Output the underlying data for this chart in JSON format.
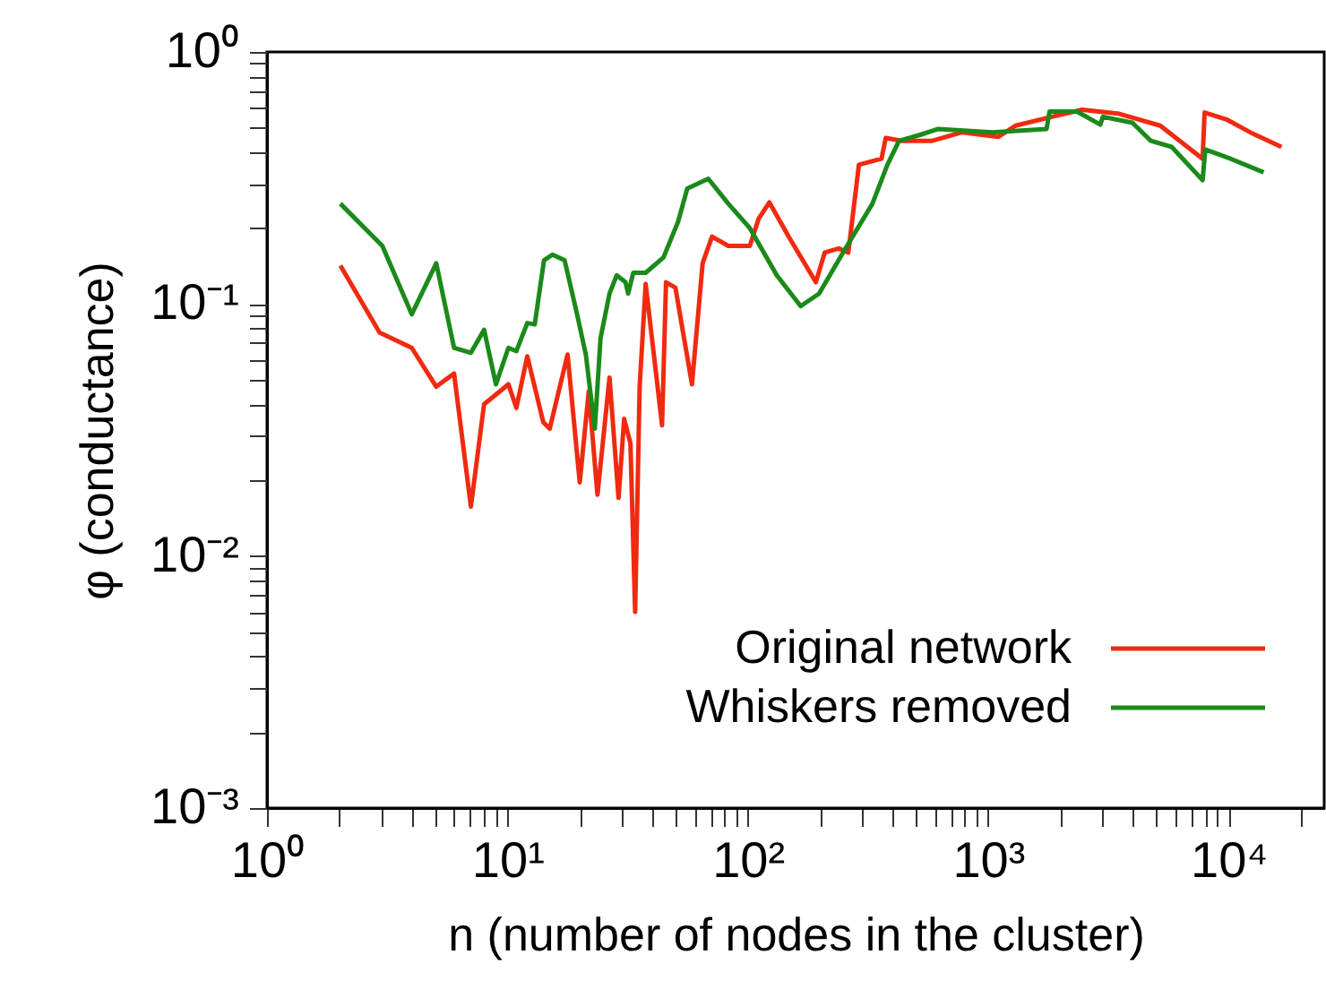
{
  "chart_data": {
    "type": "line",
    "xlabel": "n (number of nodes in the cluster)",
    "ylabel": "φ (conductance)",
    "log": "xy",
    "grid": false,
    "legend": "bottom right",
    "line_style": "solid",
    "marker": "none",
    "xlim": [
      1,
      25000
    ],
    "ylim": [
      0.001,
      1
    ],
    "xticks": [
      {
        "value": 1,
        "label": "10⁰"
      },
      {
        "value": 2,
        "label": null
      },
      {
        "value": 3,
        "label": null
      },
      {
        "value": 4,
        "label": null
      },
      {
        "value": 5,
        "label": null
      },
      {
        "value": 6,
        "label": null
      },
      {
        "value": 7,
        "label": null
      },
      {
        "value": 8,
        "label": null
      },
      {
        "value": 9,
        "label": null
      },
      {
        "value": 10,
        "label": "10¹"
      },
      {
        "value": 20,
        "label": null
      },
      {
        "value": 30,
        "label": null
      },
      {
        "value": 40,
        "label": null
      },
      {
        "value": 50,
        "label": null
      },
      {
        "value": 60,
        "label": null
      },
      {
        "value": 70,
        "label": null
      },
      {
        "value": 80,
        "label": null
      },
      {
        "value": 90,
        "label": null
      },
      {
        "value": 100,
        "label": "10²"
      },
      {
        "value": 200,
        "label": null
      },
      {
        "value": 300,
        "label": null
      },
      {
        "value": 400,
        "label": null
      },
      {
        "value": 500,
        "label": null
      },
      {
        "value": 600,
        "label": null
      },
      {
        "value": 700,
        "label": null
      },
      {
        "value": 800,
        "label": null
      },
      {
        "value": 900,
        "label": null
      },
      {
        "value": 1000,
        "label": "10³"
      },
      {
        "value": 2000,
        "label": null
      },
      {
        "value": 3000,
        "label": null
      },
      {
        "value": 4000,
        "label": null
      },
      {
        "value": 5000,
        "label": null
      },
      {
        "value": 6000,
        "label": null
      },
      {
        "value": 7000,
        "label": null
      },
      {
        "value": 8000,
        "label": null
      },
      {
        "value": 9000,
        "label": null
      },
      {
        "value": 10000,
        "label": "10⁴"
      },
      {
        "value": 20000,
        "label": null
      }
    ],
    "yticks": [
      {
        "value": 0.001,
        "label": "10⁻³"
      },
      {
        "value": 0.002,
        "label": null
      },
      {
        "value": 0.003,
        "label": null
      },
      {
        "value": 0.004,
        "label": null
      },
      {
        "value": 0.005,
        "label": null
      },
      {
        "value": 0.006,
        "label": null
      },
      {
        "value": 0.007,
        "label": null
      },
      {
        "value": 0.008,
        "label": null
      },
      {
        "value": 0.009,
        "label": null
      },
      {
        "value": 0.01,
        "label": "10⁻²"
      },
      {
        "value": 0.02,
        "label": null
      },
      {
        "value": 0.03,
        "label": null
      },
      {
        "value": 0.04,
        "label": null
      },
      {
        "value": 0.05,
        "label": null
      },
      {
        "value": 0.06,
        "label": null
      },
      {
        "value": 0.07,
        "label": null
      },
      {
        "value": 0.08,
        "label": null
      },
      {
        "value": 0.09,
        "label": null
      },
      {
        "value": 0.1,
        "label": "10⁻¹"
      },
      {
        "value": 0.2,
        "label": null
      },
      {
        "value": 0.3,
        "label": null
      },
      {
        "value": 0.4,
        "label": null
      },
      {
        "value": 0.5,
        "label": null
      },
      {
        "value": 0.6,
        "label": null
      },
      {
        "value": 0.7,
        "label": null
      },
      {
        "value": 0.8,
        "label": null
      },
      {
        "value": 0.9,
        "label": null
      },
      {
        "value": 1,
        "label": "10⁰"
      }
    ],
    "series": [
      {
        "name": "Original network",
        "color": "#f02a10",
        "x": [
          2.02,
          2.94,
          4.0,
          5.06,
          6.0,
          7.05,
          8.0,
          10.1,
          10.9,
          12.1,
          14.1,
          15.0,
          17.8,
          20.0,
          21.8,
          23.7,
          26.6,
          29.0,
          30.6,
          32.5,
          34.0,
          35.5,
          37.6,
          44,
          45.7,
          50,
          58.6,
          64.9,
          71,
          83,
          102,
          111,
          123,
          148,
          192,
          209,
          239,
          262,
          290,
          360,
          375,
          438,
          586,
          780,
          1100,
          1300,
          1840,
          2460,
          3460,
          5200,
          7800,
          7950,
          9800,
          12300,
          16600
        ],
        "values": [
          0.142,
          0.077,
          0.067,
          0.047,
          0.053,
          0.0157,
          0.04,
          0.048,
          0.0387,
          0.062,
          0.034,
          0.032,
          0.063,
          0.0196,
          0.045,
          0.0175,
          0.051,
          0.017,
          0.035,
          0.028,
          0.006,
          0.047,
          0.12,
          0.033,
          0.122,
          0.116,
          0.048,
          0.145,
          0.185,
          0.17,
          0.17,
          0.218,
          0.253,
          0.185,
          0.122,
          0.16,
          0.166,
          0.16,
          0.357,
          0.377,
          0.456,
          0.444,
          0.444,
          0.48,
          0.46,
          0.51,
          0.553,
          0.59,
          0.57,
          0.51,
          0.377,
          0.575,
          0.54,
          0.48,
          0.42
        ]
      },
      {
        "name": "Whiskers removed",
        "color": "#1a8a1a",
        "x": [
          2.02,
          3.02,
          4.0,
          5.06,
          6.0,
          7.05,
          8.0,
          8.96,
          10.1,
          10.9,
          12.1,
          13.0,
          14.2,
          15.4,
          17.3,
          19.4,
          21.2,
          23.1,
          24.4,
          26.6,
          28.5,
          31,
          31.8,
          33.4,
          37.6,
          44.6,
          51.3,
          56,
          68.5,
          83,
          102,
          132,
          166,
          198,
          249,
          330,
          381,
          426,
          525,
          620,
          1040,
          1750,
          1800,
          2340,
          2930,
          3000,
          3980,
          4750,
          5800,
          7800,
          8000,
          10200,
          14000
        ],
        "values": [
          0.25,
          0.17,
          0.091,
          0.145,
          0.067,
          0.064,
          0.079,
          0.048,
          0.067,
          0.065,
          0.084,
          0.083,
          0.149,
          0.157,
          0.149,
          0.093,
          0.063,
          0.032,
          0.073,
          0.11,
          0.13,
          0.122,
          0.11,
          0.133,
          0.133,
          0.153,
          0.212,
          0.287,
          0.314,
          0.25,
          0.2,
          0.13,
          0.098,
          0.11,
          0.16,
          0.25,
          0.357,
          0.444,
          0.47,
          0.495,
          0.48,
          0.495,
          0.58,
          0.58,
          0.515,
          0.553,
          0.524,
          0.444,
          0.42,
          0.31,
          0.41,
          0.377,
          0.333
        ]
      }
    ]
  }
}
